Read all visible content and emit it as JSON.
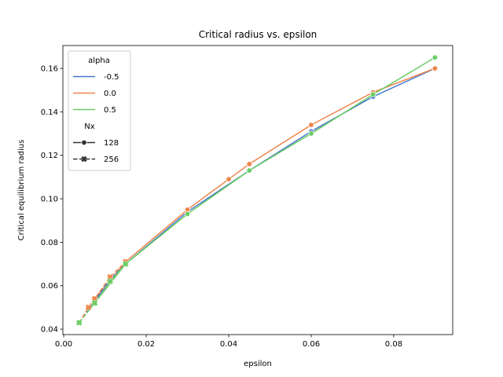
{
  "chart_data": {
    "type": "line",
    "title": "Critical radius vs. epsilon",
    "xlabel": "epsilon",
    "ylabel": "Critical equilibrium radius",
    "xlim": [
      -0.0002,
      0.0943
    ],
    "ylim": [
      0.0375,
      0.1705
    ],
    "xticks": [
      0.0,
      0.02,
      0.04,
      0.06,
      0.08
    ],
    "xtick_labels": [
      "0.00",
      "0.02",
      "0.04",
      "0.06",
      "0.08"
    ],
    "yticks": [
      0.04,
      0.06,
      0.08,
      0.1,
      0.12,
      0.14,
      0.16
    ],
    "ytick_labels": [
      "0.04",
      "0.06",
      "0.08",
      "0.10",
      "0.12",
      "0.14",
      "0.16"
    ],
    "grid": false,
    "legend_placement": "upper-left",
    "legend": {
      "hue_title": "alpha",
      "hue_entries": [
        {
          "label": "-0.5",
          "color": "#4878d0"
        },
        {
          "label": "0.0",
          "color": "#ee854a"
        },
        {
          "label": "0.5",
          "color": "#6acc64"
        }
      ],
      "style_title": "Nx",
      "style_entries": [
        {
          "label": "128",
          "marker": "circle",
          "dash": "solid"
        },
        {
          "label": "256",
          "marker": "x",
          "dash": "dashed"
        }
      ]
    },
    "series": [
      {
        "alpha": "-0.5",
        "Nx": "128",
        "color": "#4878d0",
        "marker": "circle",
        "x": [
          0.0075,
          0.015,
          0.03,
          0.045,
          0.06,
          0.075,
          0.09
        ],
        "y": [
          0.053,
          0.07,
          0.094,
          0.113,
          0.131,
          0.147,
          0.16
        ]
      },
      {
        "alpha": "0.0",
        "Nx": "128",
        "color": "#ee854a",
        "marker": "circle",
        "x": [
          0.0075,
          0.015,
          0.03,
          0.04,
          0.045,
          0.06,
          0.075,
          0.09
        ],
        "y": [
          0.054,
          0.071,
          0.095,
          0.109,
          0.116,
          0.134,
          0.149,
          0.16
        ]
      },
      {
        "alpha": "0.5",
        "Nx": "128",
        "color": "#6acc64",
        "marker": "circle",
        "x": [
          0.0075,
          0.015,
          0.03,
          0.045,
          0.06,
          0.075,
          0.09
        ],
        "y": [
          0.052,
          0.07,
          0.093,
          0.113,
          0.13,
          0.148,
          0.165
        ]
      },
      {
        "alpha": "-0.5",
        "Nx": "256",
        "color": "#4878d0",
        "marker": "x",
        "x": [
          0.00375,
          0.0075,
          0.01125,
          0.015
        ],
        "y": [
          0.043,
          0.053,
          0.063,
          0.07
        ]
      },
      {
        "alpha": "0.0",
        "Nx": "256",
        "color": "#ee854a",
        "marker": "x",
        "x": [
          0.00375,
          0.006,
          0.0075,
          0.01125,
          0.015
        ],
        "y": [
          0.043,
          0.05,
          0.054,
          0.064,
          0.071
        ]
      },
      {
        "alpha": "0.5",
        "Nx": "256",
        "color": "#6acc64",
        "marker": "x",
        "x": [
          0.00375,
          0.0075,
          0.01125,
          0.015
        ],
        "y": [
          0.043,
          0.052,
          0.062,
          0.07
        ]
      }
    ]
  }
}
